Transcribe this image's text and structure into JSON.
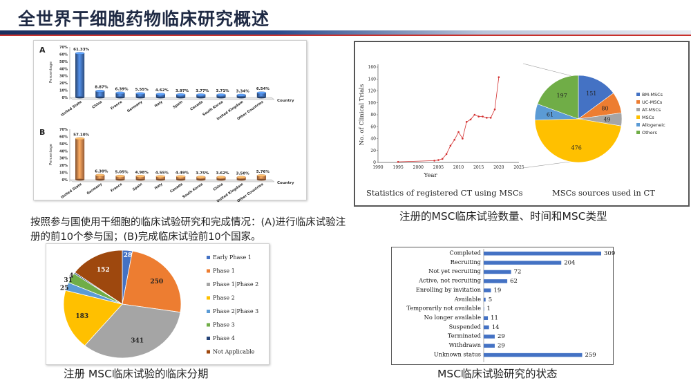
{
  "page_title": "全世界干细胞药物临床研究概述",
  "captions": {
    "countries": "按照参与国使用干细胞的临床试验研究和完成情况：(A)进行临床试验注册的前10个参与国；(B)完成临床试验前10个国家。",
    "ct_panel": "注册的MSC临床试验数量、时间和MSC类型",
    "phase": "注册 MSC临床试验的临床分期",
    "status": "MSC临床试验研究的状态"
  },
  "chart_data": [
    {
      "id": "A",
      "type": "bar",
      "panel_label": "A",
      "ylabel": "Percentage",
      "xlabel": "Country",
      "yticks": [
        "0%",
        "10%",
        "20%",
        "30%",
        "40%",
        "50%",
        "60%",
        "70%"
      ],
      "ylim": [
        0,
        70
      ],
      "categories": [
        "United State",
        "China",
        "France",
        "Germany",
        "Italy",
        "Spain",
        "Canada",
        "South Korea",
        "United Kingdom",
        "Other Countries"
      ],
      "values": [
        61.33,
        8.87,
        6.39,
        5.55,
        4.62,
        3.97,
        3.77,
        3.71,
        3.34,
        6.54
      ],
      "labels": [
        "61.33%",
        "8.87%",
        "6.39%",
        "5.55%",
        "4.62%",
        "3.97%",
        "3.77%",
        "3.71%",
        "3.34%",
        "6.54%"
      ],
      "color": "#3f6db0"
    },
    {
      "id": "B",
      "type": "bar",
      "panel_label": "B",
      "ylabel": "Percentage",
      "xlabel": "Country",
      "yticks": [
        "0%",
        "10%",
        "20%",
        "30%",
        "40%",
        "50%",
        "60%",
        "70%"
      ],
      "ylim": [
        0,
        70
      ],
      "categories": [
        "United State",
        "Germany",
        "France",
        "Spain",
        "Italy",
        "Canada",
        "South Korea",
        "China",
        "United Kingdom",
        "Other Countries"
      ],
      "values": [
        57.1,
        6.3,
        5.05,
        4.98,
        4.55,
        4.49,
        3.75,
        3.62,
        3.5,
        5.76
      ],
      "labels": [
        "57.10%",
        "6.30%",
        "5.05%",
        "4.98%",
        "4.55%",
        "4.49%",
        "3.75%",
        "3.62%",
        "3.50%",
        "5.76%"
      ],
      "color": "#d2814a"
    },
    {
      "id": "ct_line",
      "type": "line",
      "ylabel": "No. of Clinical Trials",
      "xlabel": "Year",
      "caption": "Statistics of registered CT using MSCs",
      "xticks": [
        1990,
        1995,
        2000,
        2005,
        2010,
        2015,
        2020,
        2025
      ],
      "yticks": [
        0,
        20,
        40,
        60,
        80,
        100,
        120,
        140,
        160
      ],
      "xlim": [
        1990,
        2025
      ],
      "ylim": [
        0,
        160
      ],
      "x": [
        1995,
        2004,
        2005,
        2006,
        2007,
        2008,
        2009,
        2010,
        2011,
        2012,
        2013,
        2014,
        2015,
        2016,
        2017,
        2018,
        2019,
        2020
      ],
      "y": [
        1,
        3,
        4,
        6,
        14,
        28,
        38,
        51,
        40,
        68,
        72,
        80,
        77,
        77,
        75,
        75,
        89,
        143
      ],
      "color": "#d32f2f"
    },
    {
      "id": "msc_sources",
      "type": "pie",
      "caption": "MSCs sources used in CT",
      "categories": [
        "BM-MSCs",
        "UC-MSCs",
        "AT-MSCs",
        "MSCs",
        "Allogeneic",
        "Others"
      ],
      "values": [
        151,
        80,
        49,
        476,
        61,
        197
      ],
      "colors": [
        "#4472c4",
        "#ed7d31",
        "#a5a5a5",
        "#ffc000",
        "#5b9bd5",
        "#70ad47"
      ]
    },
    {
      "id": "phase",
      "type": "pie",
      "categories": [
        "Early Phase 1",
        "Phase 1",
        "Phase 1|Phase 2",
        "Phase 2",
        "Phase 2|Phase 3",
        "Phase 3",
        "Phase 4",
        "Not Applicable"
      ],
      "values": [
        28,
        250,
        341,
        183,
        25,
        31,
        4,
        152
      ],
      "colors": [
        "#4472c4",
        "#ed7d31",
        "#a5a5a5",
        "#ffc000",
        "#5b9bd5",
        "#70ad47",
        "#264478",
        "#9e480e"
      ]
    },
    {
      "id": "status",
      "type": "bar",
      "orientation": "horizontal",
      "categories": [
        "Completed",
        "Recruiting",
        "Not yet recruiting",
        "Active, not recruiting",
        "Enrolling by invitation",
        "Available",
        "Temporarily not available",
        "No longer available",
        "Suspended",
        "Terminated",
        "Withdrawn",
        "Unknown status"
      ],
      "values": [
        309,
        204,
        72,
        62,
        19,
        5,
        1,
        11,
        14,
        29,
        29,
        259
      ],
      "color": "#4472c4"
    }
  ]
}
